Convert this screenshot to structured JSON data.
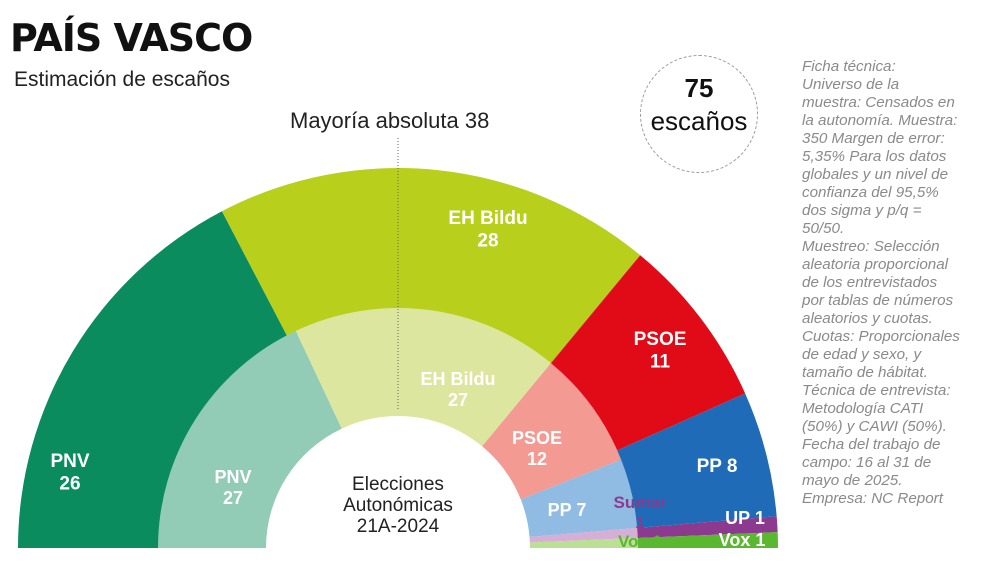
{
  "header": {
    "title": "PAÍS VASCO",
    "subtitle": "Estimación de escaños",
    "majority_label": "Mayoría absoluta 38"
  },
  "badge": {
    "number": "75",
    "label": "escaños"
  },
  "center_label": [
    "Elecciones",
    "Autonómicas",
    "21A-2024"
  ],
  "technical_note": [
    "Ficha técnica:",
    "Universo de la",
    "muestra: Censados en",
    "la autonomía. Muestra:",
    "350 Margen de error:",
    "5,35% Para los datos",
    "globales y un nivel de",
    "confianza del 95,5%",
    "dos sigma y p/q =",
    "50/50.",
    "Muestreo: Selección",
    "aleatoria proporcional",
    "de los entrevistados",
    "por tablas de números",
    "aleatorios y cuotas.",
    "Cuotas: Proporcionales",
    "de edad y sexo, y",
    "tamaño de hábitat.",
    "Técnica de entrevista:",
    "Metodología CATI",
    "(50%) y CAWI (50%).",
    "Fecha del trabajo de",
    "campo: 16 al 31 de",
    "mayo de 2025.",
    "Empresa: NC Report"
  ],
  "chart_data": [
    {
      "type": "pie",
      "name": "Estimación de escaños",
      "total_seats": 75,
      "majority": 38,
      "categories": [
        "PNV",
        "EH Bildu",
        "PSOE",
        "PP",
        "UP",
        "Vox"
      ],
      "values": [
        26,
        28,
        11,
        8,
        1,
        1
      ],
      "colors": [
        "#0a8c5f",
        "#b8cf1b",
        "#e10a17",
        "#1f6bb8",
        "#8b3a8f",
        "#5ab82e"
      ]
    },
    {
      "type": "pie",
      "name": "Elecciones Autonómicas 21A-2024",
      "total_seats": 75,
      "categories": [
        "PNV",
        "EH Bildu",
        "PSOE",
        "PP",
        "Sumar",
        "Vox"
      ],
      "values": [
        27,
        27,
        12,
        7,
        1,
        1
      ],
      "colors": [
        "#93ccb6",
        "#dde69f",
        "#f39a93",
        "#90bbe2",
        "#d7aed6",
        "#b9e093"
      ]
    }
  ]
}
